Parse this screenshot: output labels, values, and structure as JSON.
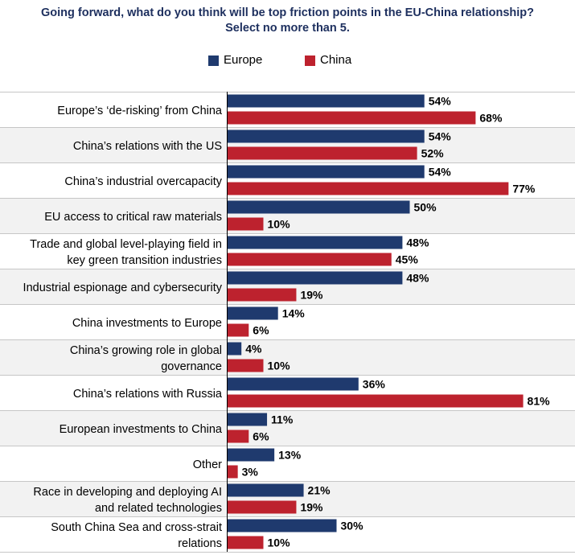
{
  "title_line1": "Going forward, what do you think will be top friction points in the EU-China relationship?",
  "title_line2": "Select no more than 5.",
  "colors": {
    "europe": "#1f3a6e",
    "china": "#bd222e",
    "band": "#f2f2f2",
    "divider": "#c6c6c6",
    "axis": "#000000"
  },
  "chart_data": {
    "type": "bar",
    "orientation": "horizontal",
    "categories": [
      [
        "Europe’s ‘de-risking’ from China"
      ],
      [
        "China’s relations with the US"
      ],
      [
        "China’s industrial overcapacity"
      ],
      [
        "EU access to critical raw materials"
      ],
      [
        "Trade and global level-playing field in",
        "key green transition industries"
      ],
      [
        "Industrial espionage and cybersecurity"
      ],
      [
        "China investments to Europe"
      ],
      [
        "China’s growing role in global",
        "governance"
      ],
      [
        "China’s relations with Russia"
      ],
      [
        "European investments to China"
      ],
      [
        "Other"
      ],
      [
        "Race in developing and deploying AI",
        "and related technologies"
      ],
      [
        "South China Sea and cross-strait",
        "relations"
      ]
    ],
    "series": [
      {
        "name": "Europe",
        "values": [
          54,
          54,
          54,
          50,
          48,
          48,
          14,
          4,
          36,
          11,
          13,
          21,
          30
        ]
      },
      {
        "name": "China",
        "values": [
          68,
          52,
          77,
          10,
          45,
          19,
          6,
          10,
          81,
          6,
          3,
          19,
          10
        ]
      }
    ],
    "value_suffix": "%",
    "xlim": [
      0,
      100
    ],
    "legend_position": "top",
    "alternating_row_bands": true
  }
}
